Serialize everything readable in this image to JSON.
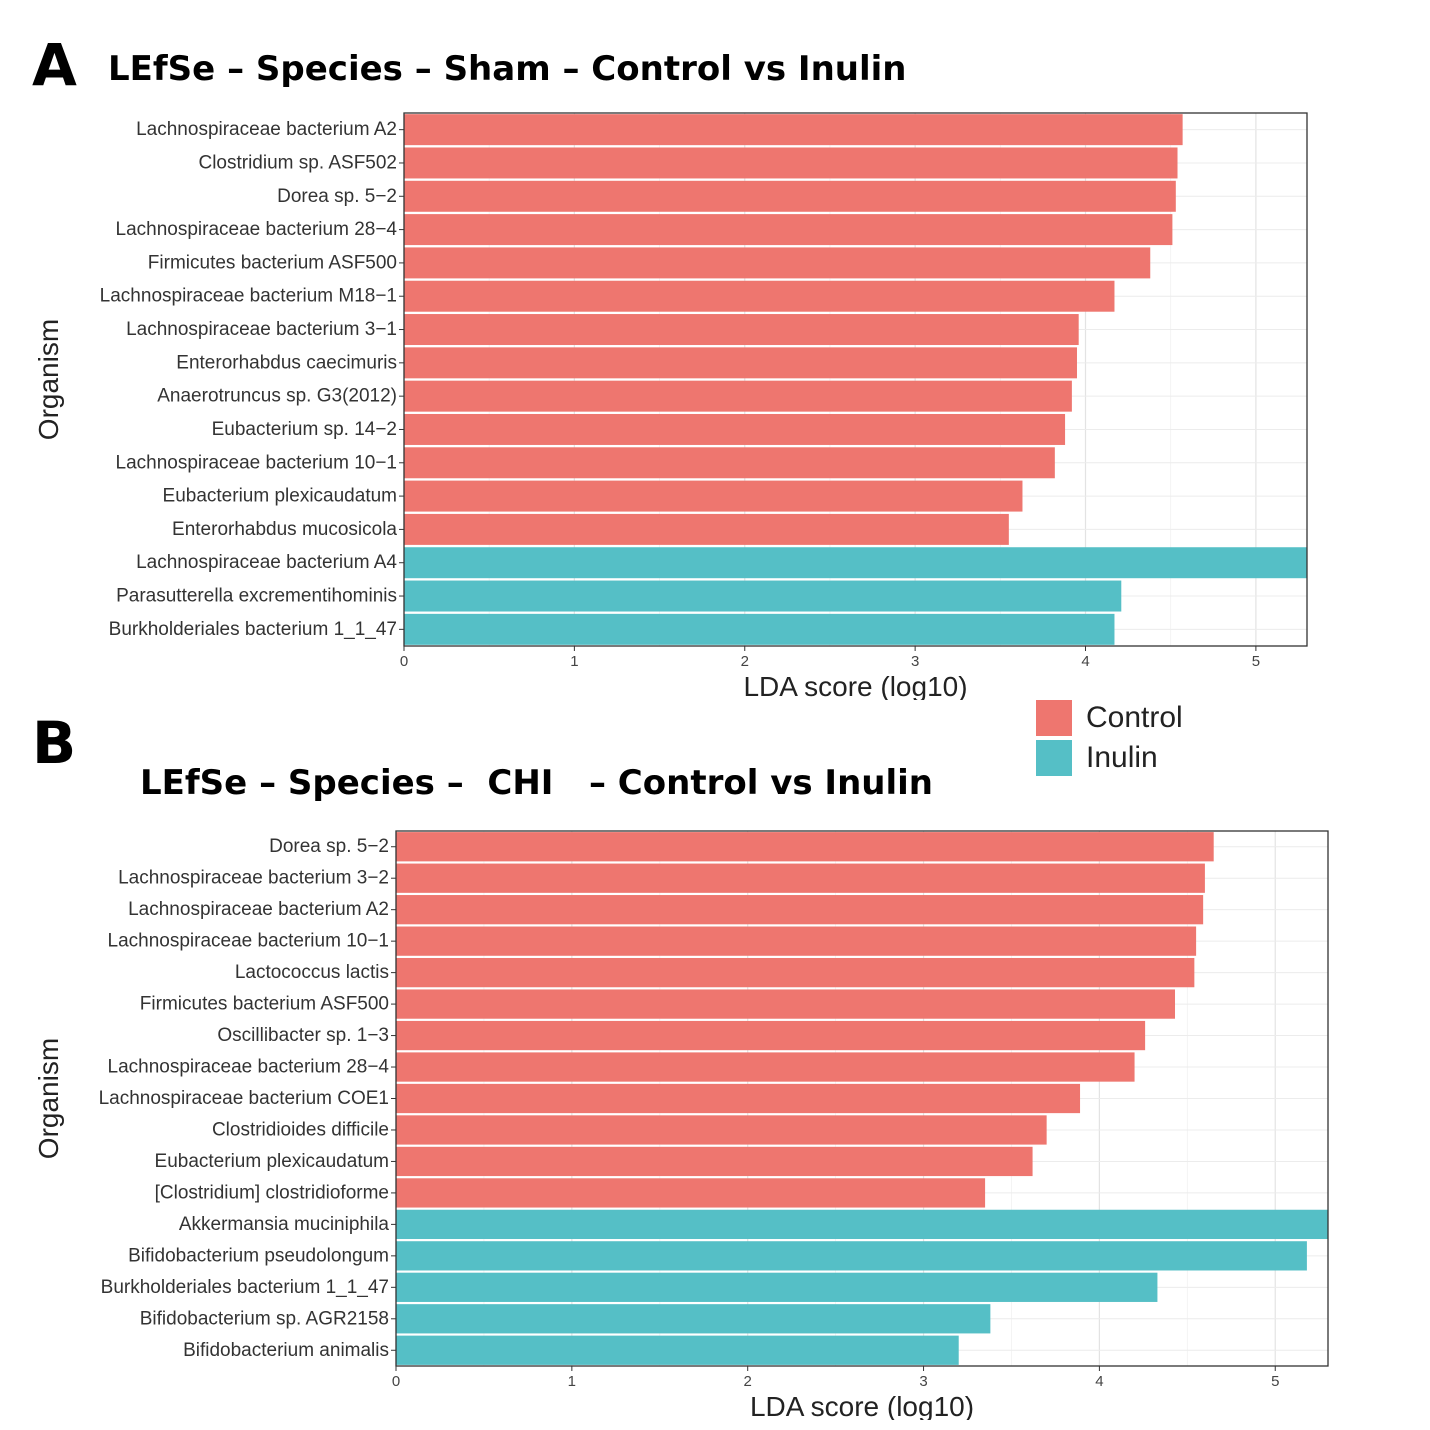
{
  "panels": [
    {
      "letter": "A",
      "title": "LEfSe – Species – Sham – Control vs Inulin"
    },
    {
      "letter": "B",
      "title": "LEfSe – Species –  CHI   – Control vs Inulin"
    }
  ],
  "legend": [
    {
      "label": "Control",
      "color": "#EE766F"
    },
    {
      "label": "Inulin",
      "color": "#55BFC6"
    }
  ],
  "chart_data": [
    {
      "type": "bar",
      "orientation": "horizontal",
      "title": "LEfSe – Species – Sham – Control vs Inulin",
      "xlabel": "LDA score (log10)",
      "ylabel": "Organism",
      "xlim": [
        0,
        5.3
      ],
      "xticks": [
        "0",
        "1",
        "2",
        "3",
        "4",
        "5"
      ],
      "grid": true,
      "categories": [
        "Lachnospiraceae bacterium A2",
        "Clostridium sp. ASF502",
        "Dorea sp. 5−2",
        "Lachnospiraceae bacterium 28−4",
        "Firmicutes bacterium ASF500",
        "Lachnospiraceae bacterium M18−1",
        "Lachnospiraceae bacterium 3−1",
        "Enterorhabdus caecimuris",
        "Anaerotruncus sp. G3(2012)",
        "Eubacterium sp. 14−2",
        "Lachnospiraceae bacterium 10−1",
        "Eubacterium plexicaudatum",
        "Enterorhabdus mucosicola",
        "Lachnospiraceae bacterium A4",
        "Parasutterella excrementihominis",
        "Burkholderiales bacterium 1_1_47"
      ],
      "values": [
        4.57,
        4.54,
        4.53,
        4.51,
        4.38,
        4.17,
        3.96,
        3.95,
        3.92,
        3.88,
        3.82,
        3.63,
        3.55,
        5.3,
        4.21,
        4.17
      ],
      "groups": [
        "Control",
        "Control",
        "Control",
        "Control",
        "Control",
        "Control",
        "Control",
        "Control",
        "Control",
        "Control",
        "Control",
        "Control",
        "Control",
        "Inulin",
        "Inulin",
        "Inulin"
      ]
    },
    {
      "type": "bar",
      "orientation": "horizontal",
      "title": "LEfSe – Species –  CHI   – Control vs Inulin",
      "xlabel": "LDA score (log10)",
      "ylabel": "Organism",
      "xlim": [
        0,
        5.3
      ],
      "xticks": [
        "0",
        "1",
        "2",
        "3",
        "4",
        "5"
      ],
      "grid": true,
      "categories": [
        "Dorea sp. 5−2",
        "Lachnospiraceae bacterium 3−2",
        "Lachnospiraceae bacterium A2",
        "Lachnospiraceae bacterium 10−1",
        "Lactococcus lactis",
        "Firmicutes bacterium ASF500",
        "Oscillibacter sp. 1−3",
        "Lachnospiraceae bacterium 28−4",
        "Lachnospiraceae bacterium COE1",
        "Clostridioides difficile",
        "Eubacterium plexicaudatum",
        "[Clostridium] clostridioforme",
        "Akkermansia muciniphila",
        "Bifidobacterium pseudolongum",
        "Burkholderiales bacterium 1_1_47",
        "Bifidobacterium sp. AGR2158",
        "Bifidobacterium animalis"
      ],
      "values": [
        4.65,
        4.6,
        4.59,
        4.55,
        4.54,
        4.43,
        4.26,
        4.2,
        3.89,
        3.7,
        3.62,
        3.35,
        5.3,
        5.18,
        4.33,
        3.38,
        3.2
      ],
      "groups": [
        "Control",
        "Control",
        "Control",
        "Control",
        "Control",
        "Control",
        "Control",
        "Control",
        "Control",
        "Control",
        "Control",
        "Control",
        "Inulin",
        "Inulin",
        "Inulin",
        "Inulin",
        "Inulin"
      ]
    }
  ]
}
